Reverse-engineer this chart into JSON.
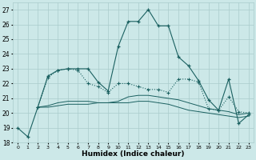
{
  "xlabel": "Humidex (Indice chaleur)",
  "xlim": [
    -0.5,
    23.5
  ],
  "ylim": [
    18,
    27.5
  ],
  "yticks": [
    18,
    19,
    20,
    21,
    22,
    23,
    24,
    25,
    26,
    27
  ],
  "xticks": [
    0,
    1,
    2,
    3,
    4,
    5,
    6,
    7,
    8,
    9,
    10,
    11,
    12,
    13,
    14,
    15,
    16,
    17,
    18,
    19,
    20,
    21,
    22,
    23
  ],
  "bg_color": "#cce8e8",
  "grid_color": "#aacccc",
  "line_color": "#1a6060",
  "line1_x": [
    0,
    1,
    2,
    3,
    4,
    5,
    6,
    7,
    8,
    9,
    10,
    11,
    12,
    13,
    14,
    15,
    16,
    17,
    18,
    19,
    20,
    21,
    22,
    23
  ],
  "line1_y": [
    19.0,
    18.4,
    20.4,
    22.5,
    22.9,
    23.0,
    23.0,
    23.0,
    22.1,
    21.5,
    24.5,
    26.2,
    26.2,
    27.0,
    25.9,
    25.9,
    23.8,
    23.2,
    22.2,
    20.9,
    20.2,
    22.3,
    19.3,
    19.9
  ],
  "line2_x": [
    2,
    3,
    4,
    5,
    6,
    7,
    8,
    9,
    10,
    11,
    12,
    13,
    14,
    15,
    16,
    17,
    18,
    19,
    20,
    21,
    22,
    23
  ],
  "line2_y": [
    20.4,
    22.4,
    22.9,
    23.0,
    22.9,
    22.0,
    21.8,
    21.4,
    22.0,
    22.0,
    21.8,
    21.6,
    21.6,
    21.4,
    22.3,
    22.3,
    22.1,
    20.3,
    20.2,
    21.1,
    20.1,
    20.0
  ],
  "line3_x": [
    2,
    3,
    4,
    5,
    6,
    7,
    8,
    9,
    10,
    11,
    12,
    13,
    14,
    15,
    16,
    17,
    18,
    19,
    20,
    21,
    22,
    23
  ],
  "line3_y": [
    20.4,
    20.5,
    20.7,
    20.8,
    20.8,
    20.8,
    20.7,
    20.7,
    20.8,
    21.1,
    21.2,
    21.2,
    21.1,
    21.0,
    20.9,
    20.7,
    20.5,
    20.3,
    20.2,
    20.1,
    19.9,
    20.0
  ],
  "line4_x": [
    2,
    3,
    4,
    5,
    6,
    7,
    8,
    9,
    10,
    11,
    12,
    13,
    14,
    15,
    16,
    17,
    18,
    19,
    20,
    21,
    22,
    23
  ],
  "line4_y": [
    20.4,
    20.4,
    20.5,
    20.6,
    20.6,
    20.6,
    20.7,
    20.7,
    20.7,
    20.7,
    20.8,
    20.8,
    20.7,
    20.6,
    20.4,
    20.2,
    20.1,
    20.0,
    19.9,
    19.8,
    19.7,
    19.8
  ]
}
